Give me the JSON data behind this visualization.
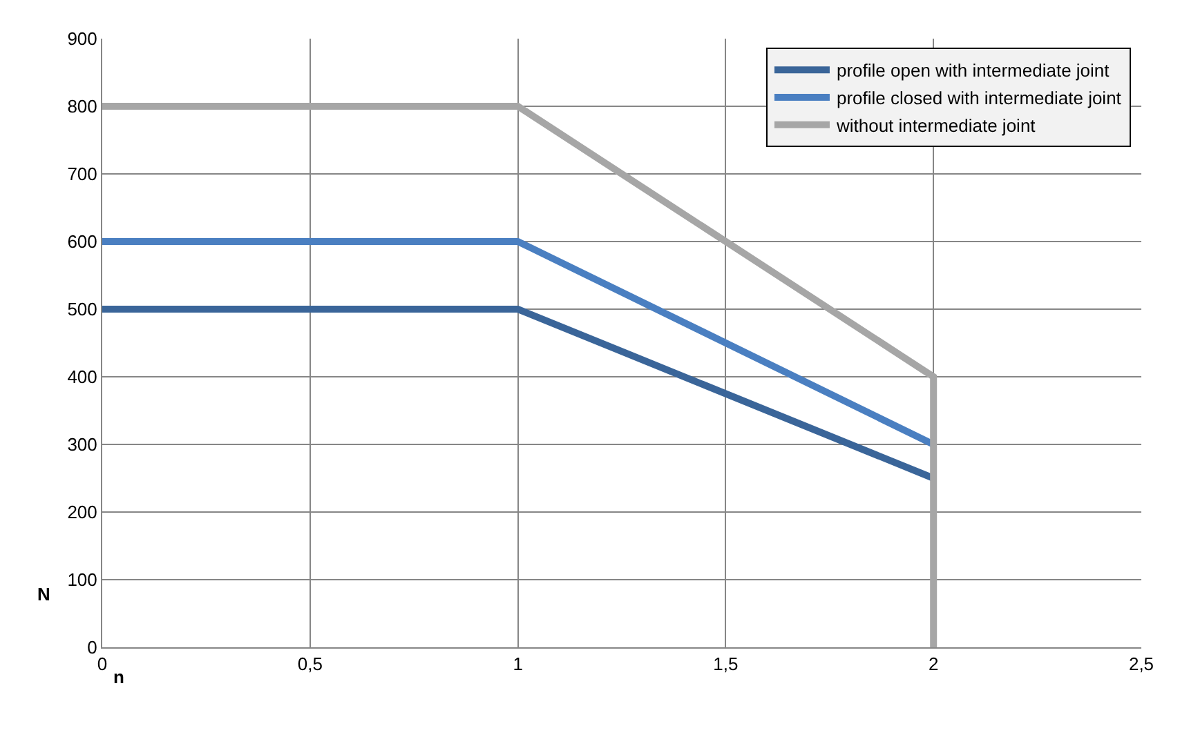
{
  "chart_data": {
    "type": "line",
    "xlabel": "n",
    "ylabel": "N",
    "xlim": [
      0,
      2.5
    ],
    "xticks": [
      0,
      {
        "value": 0.5,
        "label": "0,5"
      },
      1,
      {
        "value": 1.5,
        "label": "1,5"
      },
      2,
      {
        "value": 2.5,
        "label": "2,5"
      }
    ],
    "ylim": [
      0,
      900
    ],
    "yticks": [
      0,
      100,
      200,
      300,
      400,
      500,
      600,
      700,
      800,
      900
    ],
    "grid": true,
    "legend": "top right",
    "marker": "none",
    "line_style": "solid",
    "series": [
      {
        "name": "profile open with intermediate joint",
        "color": "#3a6599",
        "x": [
          0,
          1,
          2
        ],
        "values": [
          500,
          500,
          250
        ]
      },
      {
        "name": "profile closed with intermediate joint",
        "color": "#4a7fc1",
        "x": [
          0,
          1,
          2
        ],
        "values": [
          600,
          600,
          300
        ]
      },
      {
        "name": "without intermediate joint",
        "color": "#a6a6a6",
        "x": [
          0,
          1,
          2,
          2
        ],
        "values": [
          800,
          800,
          400,
          0
        ]
      }
    ]
  }
}
